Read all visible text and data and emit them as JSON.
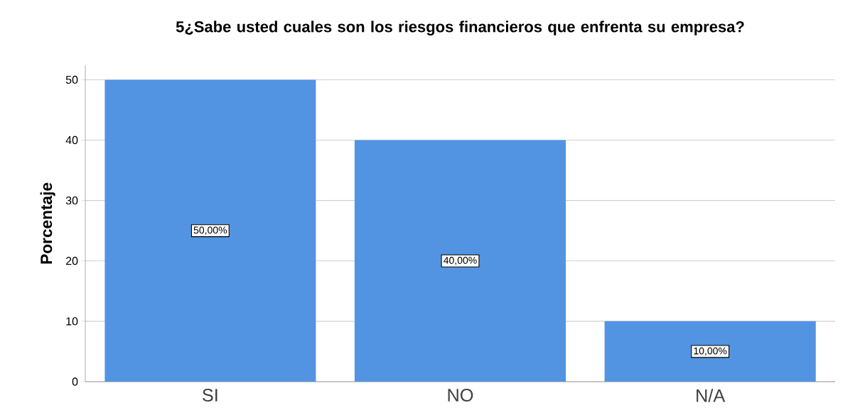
{
  "chart_data": {
    "type": "bar",
    "title": "5¿Sabe usted cuales son los riesgos financieros que enfrenta su empresa?",
    "ylabel": "Porcentaje",
    "categories": [
      "SI",
      "NO",
      "N/A"
    ],
    "values": [
      50,
      40,
      10
    ],
    "value_labels": [
      "50,00%",
      "40,00%",
      "10,00%"
    ],
    "color": "#5294e2",
    "ylim": [
      0,
      52.4
    ],
    "yticks": [
      0,
      10,
      20,
      30,
      40,
      50
    ],
    "grid": "y"
  }
}
